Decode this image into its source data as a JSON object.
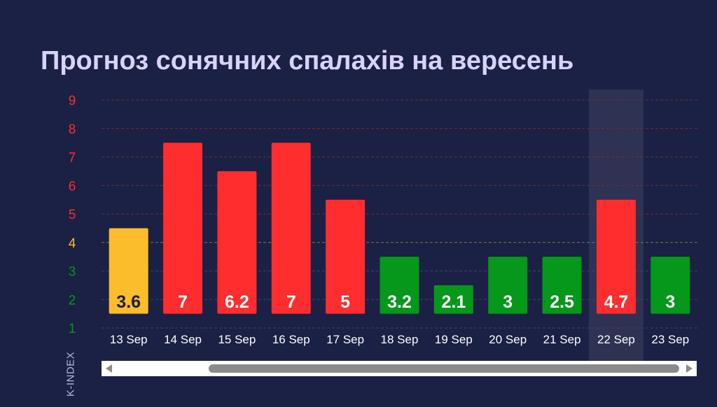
{
  "page": {
    "title": "Прогноз сонячних спалахів на вересень"
  },
  "colors": {
    "background": "#1b2045",
    "title": "#d8d2ff",
    "high": "#ff2d2d",
    "medium": "#fbbd2b",
    "low": "#05981a",
    "highlight": "#2e3253"
  },
  "chart_data": {
    "type": "bar",
    "title": "Прогноз сонячних спалахів на вересень",
    "ylabel": "K-INDEX",
    "xlabel": "",
    "ylim": [
      1,
      9
    ],
    "yticks": [
      "1",
      "2",
      "3",
      "4",
      "5",
      "6",
      "7",
      "8",
      "9"
    ],
    "ytick_colors": [
      "#05981a",
      "#05981a",
      "#05981a",
      "#fbbd2b",
      "#ff2d2d",
      "#ff2d2d",
      "#ff2d2d",
      "#ff2d2d",
      "#ff2d2d"
    ],
    "categories": [
      "13 Sep",
      "14 Sep",
      "15 Sep",
      "16 Sep",
      "17 Sep",
      "18 Sep",
      "19 Sep",
      "20 Sep",
      "21 Sep",
      "22 Sep",
      "23 Sep"
    ],
    "values": [
      4.5,
      7.5,
      6.5,
      7.5,
      5.5,
      3.5,
      2.5,
      3.5,
      3.5,
      5.5,
      3.5
    ],
    "value_labels": [
      "3.6",
      "7",
      "6.2",
      "7",
      "5",
      "3.2",
      "2.1",
      "3",
      "2.5",
      "4.7",
      "3"
    ],
    "bar_colors": [
      "#fbbd2b",
      "#ff2d2d",
      "#ff2d2d",
      "#ff2d2d",
      "#ff2d2d",
      "#05981a",
      "#05981a",
      "#05981a",
      "#05981a",
      "#ff2d2d",
      "#05981a"
    ],
    "highlighted_category": "22 Sep",
    "grid": true,
    "threshold": 4
  },
  "axis": {
    "ylabel": "K-INDEX"
  }
}
